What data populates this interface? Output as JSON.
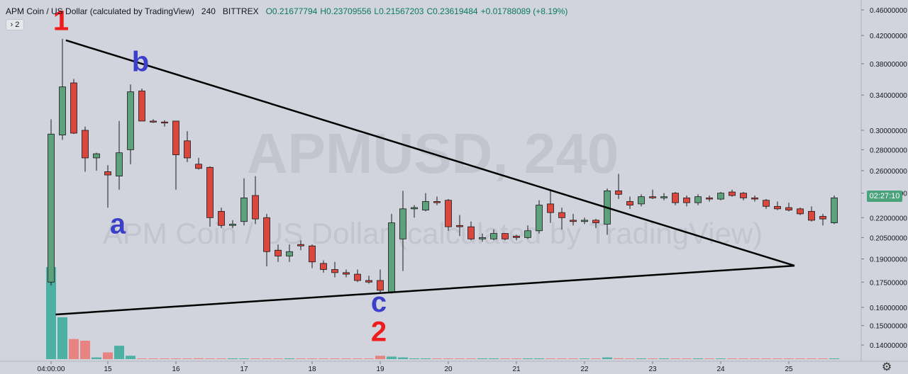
{
  "header": {
    "symbol": "APM Coin / US Dollar (calculated by TradingView)",
    "interval": "240",
    "exchange": "BITTREX",
    "open": "O0.21677794",
    "high": "H0.23709556",
    "low": "L0.21567203",
    "close": "C0.23619484",
    "change": "+0.01788089 (+8.19%)",
    "collapse_label": "› 2"
  },
  "watermark": {
    "line1": "APMUSD, 240",
    "line2": "APM Coin / US Dollar (calculated by TradingView)"
  },
  "current_price_label": "02:27:10",
  "colors": {
    "up": "#5fa07c",
    "down": "#d9473f",
    "vol_up": "#45ae9f",
    "vol_down": "#ea7e7b",
    "background": "#d1d4dc",
    "label_red": "#ee1c1c",
    "label_blue": "#3b3fc9"
  },
  "annotations": [
    {
      "text": "1",
      "color": "red",
      "index": 1,
      "price": 0.428
    },
    {
      "text": "b",
      "color": "blue",
      "index": 8,
      "price": 0.37
    },
    {
      "text": "a",
      "color": "blue",
      "index": 6,
      "price": 0.208
    },
    {
      "text": "c",
      "color": "blue",
      "index": 29,
      "price": 0.1575
    },
    {
      "text": "2",
      "color": "red",
      "index": 29,
      "price": 0.142
    }
  ],
  "chart_data": {
    "type": "candlestick",
    "title": "",
    "xlabel": "",
    "ylabel": "",
    "scale": "log",
    "y_ticks": [
      "0.46000000",
      "0.42000000",
      "0.38000000",
      "0.34000000",
      "0.30000000",
      "0.28000000",
      "0.26000000",
      "0.24000000",
      "0.22000000",
      "0.20500000",
      "0.19000000",
      "0.17500000",
      "0.16000000",
      "0.15000000",
      "0.14000000"
    ],
    "x_ticks": [
      {
        "label": "04:00:00",
        "index": 0
      },
      {
        "label": "15",
        "index": 5
      },
      {
        "label": "16",
        "index": 11
      },
      {
        "label": "17",
        "index": 17
      },
      {
        "label": "18",
        "index": 23
      },
      {
        "label": "19",
        "index": 29
      },
      {
        "label": "20",
        "index": 35
      },
      {
        "label": "21",
        "index": 41
      },
      {
        "label": "22",
        "index": 47
      },
      {
        "label": "23",
        "index": 53
      },
      {
        "label": "24",
        "index": 59
      },
      {
        "label": "25",
        "index": 65
      }
    ],
    "ohlc": [
      [
        0.175,
        0.312,
        0.173,
        0.296
      ],
      [
        0.295,
        0.415,
        0.29,
        0.35
      ],
      [
        0.355,
        0.36,
        0.296,
        0.297
      ],
      [
        0.3,
        0.304,
        0.259,
        0.272
      ],
      [
        0.272,
        0.277,
        0.26,
        0.276
      ],
      [
        0.259,
        0.265,
        0.228,
        0.256
      ],
      [
        0.255,
        0.31,
        0.243,
        0.277
      ],
      [
        0.28,
        0.353,
        0.266,
        0.344
      ],
      [
        0.345,
        0.348,
        0.31,
        0.31
      ],
      [
        0.31,
        0.312,
        0.308,
        0.309
      ],
      [
        0.309,
        0.311,
        0.304,
        0.308
      ],
      [
        0.31,
        0.31,
        0.243,
        0.275
      ],
      [
        0.289,
        0.299,
        0.268,
        0.272
      ],
      [
        0.266,
        0.272,
        0.261,
        0.262
      ],
      [
        0.263,
        0.264,
        0.213,
        0.22
      ],
      [
        0.225,
        0.228,
        0.212,
        0.214
      ],
      [
        0.214,
        0.218,
        0.212,
        0.215
      ],
      [
        0.217,
        0.253,
        0.214,
        0.236
      ],
      [
        0.238,
        0.255,
        0.215,
        0.219
      ],
      [
        0.22,
        0.223,
        0.185,
        0.195
      ],
      [
        0.196,
        0.2,
        0.188,
        0.192
      ],
      [
        0.192,
        0.2,
        0.188,
        0.195
      ],
      [
        0.2,
        0.203,
        0.196,
        0.199
      ],
      [
        0.199,
        0.2,
        0.184,
        0.188
      ],
      [
        0.187,
        0.189,
        0.181,
        0.183
      ],
      [
        0.183,
        0.188,
        0.178,
        0.181
      ],
      [
        0.181,
        0.183,
        0.178,
        0.18
      ],
      [
        0.18,
        0.183,
        0.175,
        0.176
      ],
      [
        0.176,
        0.179,
        0.174,
        0.175
      ],
      [
        0.176,
        0.183,
        0.168,
        0.17
      ],
      [
        0.169,
        0.223,
        0.168,
        0.216
      ],
      [
        0.204,
        0.242,
        0.182,
        0.227
      ],
      [
        0.227,
        0.23,
        0.22,
        0.228
      ],
      [
        0.226,
        0.24,
        0.225,
        0.233
      ],
      [
        0.233,
        0.237,
        0.23,
        0.232
      ],
      [
        0.234,
        0.235,
        0.21,
        0.213
      ],
      [
        0.214,
        0.222,
        0.206,
        0.213
      ],
      [
        0.213,
        0.217,
        0.203,
        0.204
      ],
      [
        0.204,
        0.208,
        0.202,
        0.205
      ],
      [
        0.204,
        0.211,
        0.203,
        0.208
      ],
      [
        0.208,
        0.208,
        0.203,
        0.204
      ],
      [
        0.206,
        0.207,
        0.203,
        0.205
      ],
      [
        0.205,
        0.214,
        0.204,
        0.21
      ],
      [
        0.21,
        0.234,
        0.208,
        0.23
      ],
      [
        0.231,
        0.242,
        0.216,
        0.224
      ],
      [
        0.224,
        0.228,
        0.211,
        0.22
      ],
      [
        0.218,
        0.223,
        0.214,
        0.217
      ],
      [
        0.217,
        0.22,
        0.215,
        0.218
      ],
      [
        0.218,
        0.219,
        0.212,
        0.216
      ],
      [
        0.215,
        0.244,
        0.207,
        0.242
      ],
      [
        0.242,
        0.257,
        0.235,
        0.239
      ],
      [
        0.233,
        0.237,
        0.227,
        0.23
      ],
      [
        0.231,
        0.239,
        0.229,
        0.237
      ],
      [
        0.237,
        0.243,
        0.235,
        0.236
      ],
      [
        0.236,
        0.24,
        0.234,
        0.237
      ],
      [
        0.24,
        0.241,
        0.23,
        0.232
      ],
      [
        0.236,
        0.238,
        0.229,
        0.232
      ],
      [
        0.232,
        0.239,
        0.23,
        0.237
      ],
      [
        0.236,
        0.238,
        0.233,
        0.235
      ],
      [
        0.235,
        0.241,
        0.234,
        0.24
      ],
      [
        0.241,
        0.243,
        0.237,
        0.238
      ],
      [
        0.24,
        0.241,
        0.234,
        0.236
      ],
      [
        0.236,
        0.238,
        0.233,
        0.235
      ],
      [
        0.234,
        0.235,
        0.227,
        0.229
      ],
      [
        0.229,
        0.233,
        0.226,
        0.227
      ],
      [
        0.228,
        0.232,
        0.225,
        0.226
      ],
      [
        0.227,
        0.228,
        0.222,
        0.223
      ],
      [
        0.225,
        0.229,
        0.217,
        0.218
      ],
      [
        0.221,
        0.223,
        0.214,
        0.219
      ],
      [
        0.216,
        0.238,
        0.215,
        0.236
      ]
    ],
    "volume": [
      55,
      25,
      12,
      11,
      1,
      4,
      8,
      2,
      0.4,
      0.3,
      0.3,
      0.3,
      0.4,
      0.5,
      0.4,
      0.4,
      0.3,
      0.3,
      0.3,
      0.4,
      0.3,
      0.3,
      0.3,
      0.4,
      0.3,
      0.3,
      0.3,
      0.4,
      0.3,
      2,
      1.5,
      1,
      0.3,
      0.3,
      0.3,
      0.3,
      0.4,
      0.3,
      0.3,
      0.3,
      0.3,
      0.3,
      0.3,
      0.4,
      0.3,
      0.3,
      0.3,
      0.3,
      0.3,
      1,
      0.5,
      0.3,
      0.3,
      0.3,
      0.3,
      0.3,
      0.3,
      0.3,
      0.3,
      0.3,
      0.3,
      0.3,
      0.3,
      0.3,
      0.3,
      0.3,
      0.3,
      0.3,
      0.3,
      0.3
    ],
    "trendlines": [
      {
        "from": {
          "index": 1.3,
          "price": 0.413
        },
        "to": {
          "index": 65.5,
          "price": 0.1855
        }
      },
      {
        "from": {
          "index": 0.4,
          "price": 0.156
        },
        "to": {
          "index": 65.5,
          "price": 0.1855
        }
      }
    ]
  }
}
